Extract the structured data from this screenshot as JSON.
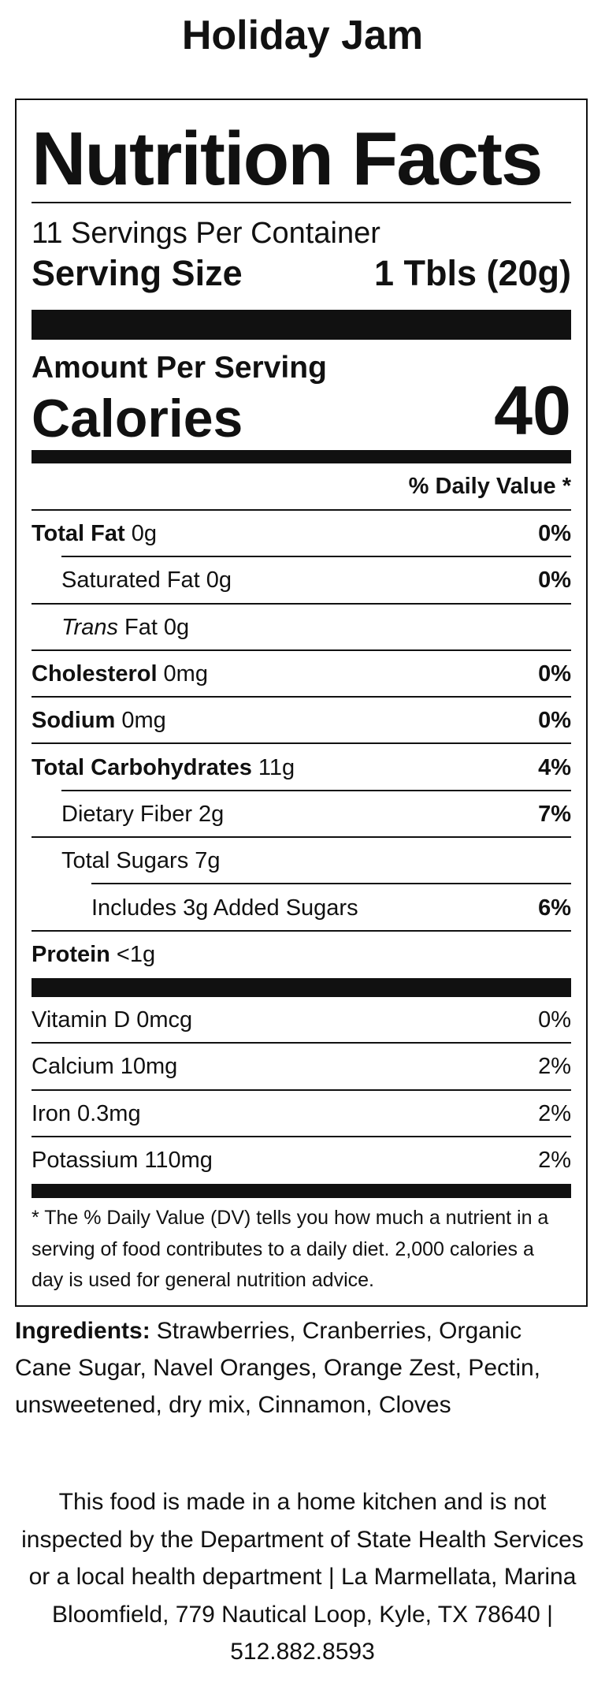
{
  "title": "Holiday Jam",
  "label": {
    "heading": "Nutrition Facts",
    "servings": "11 Servings Per Container",
    "serving_size_label": "Serving Size",
    "serving_size": "1 Tbls (20g)",
    "amount_per_serving": "Amount Per Serving",
    "calories_label": "Calories",
    "calories": "40",
    "daily_value_header": "% Daily Value *",
    "nutrients": [
      {
        "name": "Total Fat",
        "amount": "0g",
        "dv": "0%",
        "level": 0,
        "bold": true
      },
      {
        "name": "Saturated Fat",
        "amount": "0g",
        "dv": "0%",
        "level": 1,
        "bold": false
      },
      {
        "italic_name": "Trans",
        "name": "Fat",
        "amount": "0g",
        "level": 1,
        "bold": false
      },
      {
        "name": "Cholesterol",
        "amount": "0mg",
        "dv": "0%",
        "level": 0,
        "bold": true
      },
      {
        "name": "Sodium",
        "amount": "0mg",
        "dv": "0%",
        "level": 0,
        "bold": true
      },
      {
        "name": "Total Carbohydrates",
        "amount": "11g",
        "dv": "4%",
        "level": 0,
        "bold": true
      },
      {
        "name": "Dietary Fiber",
        "amount": "2g",
        "dv": "7%",
        "level": 1,
        "bold": false
      },
      {
        "name": "Total Sugars",
        "amount": "7g",
        "level": 1,
        "bold": false
      },
      {
        "name": "Includes 3g Added Sugars",
        "dv": "6%",
        "level": 2,
        "bold": false
      },
      {
        "name": "Protein",
        "amount": "<1g",
        "level": 0,
        "bold": true
      }
    ],
    "vitamins": [
      {
        "name": "Vitamin D",
        "amount": "0mcg",
        "dv": "0%"
      },
      {
        "name": "Calcium",
        "amount": "10mg",
        "dv": "2%"
      },
      {
        "name": "Iron",
        "amount": "0.3mg",
        "dv": "2%"
      },
      {
        "name": "Potassium",
        "amount": "110mg",
        "dv": "2%"
      }
    ],
    "footnote": "* The % Daily Value (DV) tells you how much a nutrient in a serving of food contributes to a daily diet. 2,000 calories a day is used for general nutrition advice."
  },
  "ingredients": {
    "label": "Ingredients:",
    "text": "Strawberries, Cranberries, Organic Cane Sugar, Navel Oranges, Orange Zest, Pectin, unsweetened, dry mix, Cinnamon, Cloves"
  },
  "disclaimer": "This food is made in a home kitchen and is not inspected by the Department of State Health Services or a local health department | La Marmellata, Marina Bloomfield, 779 Nautical Loop, Kyle, TX 78640 | 512.882.8593"
}
